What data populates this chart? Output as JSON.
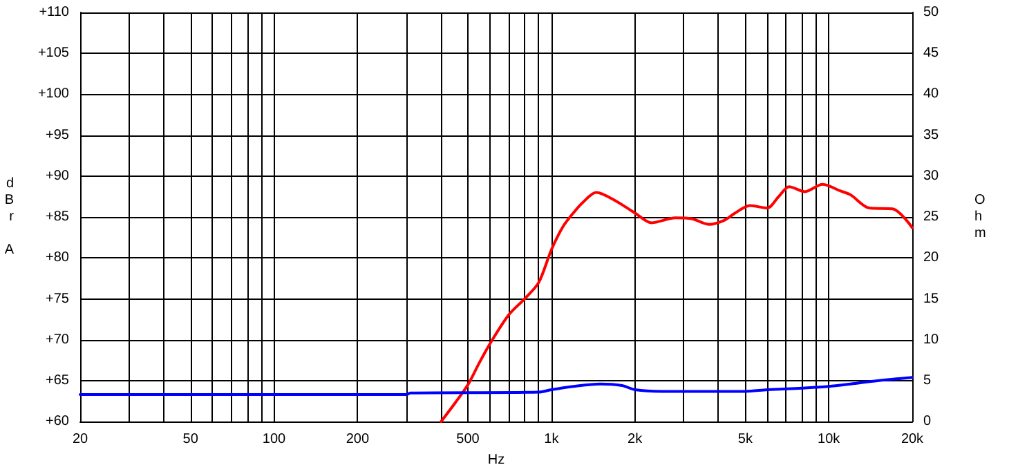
{
  "chart_data": {
    "type": "line",
    "xlabel": "Hz",
    "ylabel": "dBr A",
    "y2label": "Ohm",
    "log": "x",
    "grid": true,
    "marker": "none",
    "line_style": "solid",
    "xlim": [
      20,
      20000
    ],
    "xticks": [
      20,
      {
        "value": 30,
        "label": null
      },
      {
        "value": 40,
        "label": null
      },
      50,
      {
        "value": 60,
        "label": null
      },
      {
        "value": 70,
        "label": null
      },
      {
        "value": 80,
        "label": null
      },
      {
        "value": 90,
        "label": null
      },
      100,
      200,
      {
        "value": 300,
        "label": null
      },
      {
        "value": 400,
        "label": null
      },
      500,
      {
        "value": 600,
        "label": null
      },
      {
        "value": 700,
        "label": null
      },
      {
        "value": 800,
        "label": null
      },
      {
        "value": 900,
        "label": null
      },
      {
        "value": 1000,
        "label": "1k"
      },
      {
        "value": 2000,
        "label": "2k"
      },
      {
        "value": 3000,
        "label": null
      },
      {
        "value": 4000,
        "label": null
      },
      {
        "value": 5000,
        "label": "5k"
      },
      {
        "value": 6000,
        "label": null
      },
      {
        "value": 7000,
        "label": null
      },
      {
        "value": 8000,
        "label": null
      },
      {
        "value": 9000,
        "label": null
      },
      {
        "value": 10000,
        "label": "10k"
      },
      {
        "value": 20000,
        "label": "20k"
      }
    ],
    "ylim": [
      60,
      110
    ],
    "yticks": [
      {
        "value": 60,
        "label": "+60"
      },
      {
        "value": 65,
        "label": "+65"
      },
      {
        "value": 70,
        "label": "+70"
      },
      {
        "value": 75,
        "label": "+75"
      },
      {
        "value": 80,
        "label": "+80"
      },
      {
        "value": 85,
        "label": "+85"
      },
      {
        "value": 90,
        "label": "+90"
      },
      {
        "value": 95,
        "label": "+95"
      },
      {
        "value": 100,
        "label": "+100"
      },
      {
        "value": 105,
        "label": "+105"
      },
      {
        "value": 110,
        "label": "+110"
      }
    ],
    "y2lim": [
      0,
      50
    ],
    "y2ticks": [
      0,
      5,
      10,
      15,
      20,
      25,
      30,
      35,
      40,
      45,
      50
    ],
    "series": [
      {
        "color": "#ff0000",
        "x": [
          400,
          450,
          500,
          550,
          600,
          700,
          800,
          900,
          1000,
          1100,
          1200,
          1300,
          1450,
          1700,
          2000,
          2300,
          2800,
          3200,
          3700,
          4200,
          4600,
          5200,
          6000,
          6600,
          7200,
          8200,
          9500,
          11000,
          12000,
          14000,
          17000,
          20000
        ],
        "values": [
          60,
          62.3,
          64.5,
          67.2,
          69.5,
          73,
          75,
          77,
          81,
          83.8,
          85.5,
          86.8,
          88,
          87,
          85.5,
          84.3,
          84.9,
          84.8,
          84.1,
          84.6,
          85.5,
          86.4,
          86.1,
          87.5,
          88.7,
          88.1,
          89,
          88.2,
          87.7,
          86.1,
          86,
          83.7
        ]
      },
      {
        "color": "#0000ff",
        "axis": "y2",
        "x": [
          20,
          300,
          310,
          900,
          1000,
          1200,
          1500,
          1800,
          2000,
          2500,
          5000,
          6000,
          8000,
          10000,
          12000,
          15000,
          20000
        ],
        "values": [
          3.3,
          3.3,
          3.5,
          3.6,
          3.9,
          4.3,
          4.6,
          4.4,
          3.9,
          3.7,
          3.7,
          3.9,
          4.1,
          4.3,
          4.6,
          5.0,
          5.4
        ]
      }
    ]
  }
}
